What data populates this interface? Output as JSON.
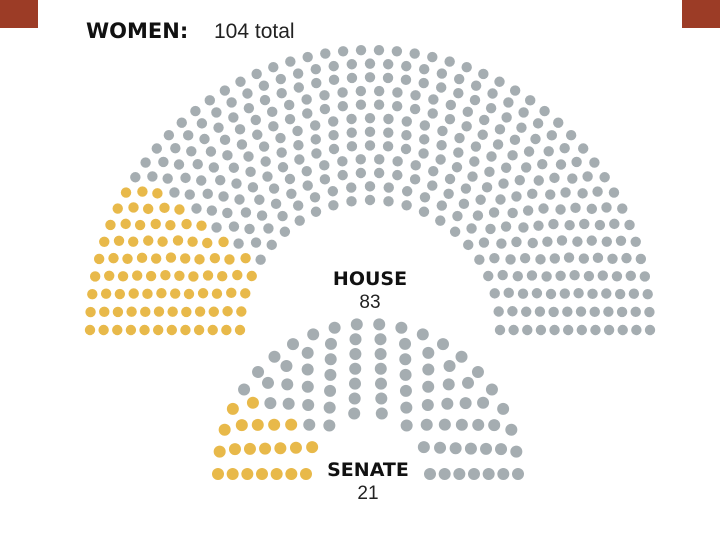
{
  "title": "WOMEN:",
  "subtitle": "104 total",
  "chart_data": [
    {
      "type": "parliament",
      "label": "HOUSE",
      "value": 83,
      "total": 435,
      "color": "#e8b94a",
      "rest_color": "#a5adb1"
    },
    {
      "type": "parliament",
      "label": "SENATE",
      "value": 21,
      "total": 100,
      "color": "#e8b94a",
      "rest_color": "#a5adb1"
    }
  ]
}
